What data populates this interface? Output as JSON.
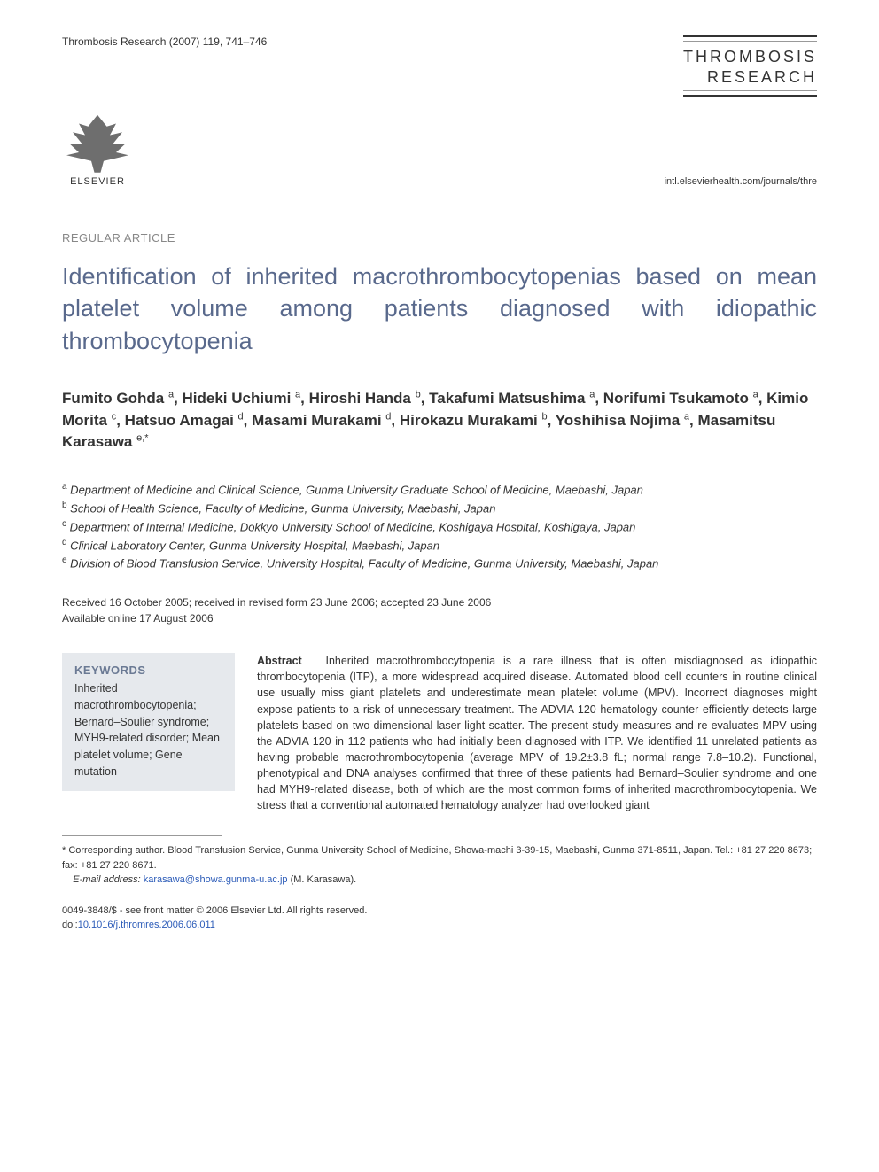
{
  "header": {
    "journal_ref": "Thrombosis Research (2007) 119, 741–746",
    "journal_name_line1": "THROMBOSIS",
    "journal_name_line2": "RESEARCH",
    "publisher_name": "ELSEVIER",
    "journal_url": "intl.elsevierhealth.com/journals/thre"
  },
  "article": {
    "type": "REGULAR ARTICLE",
    "title": "Identification of inherited macrothrombocytopenias based on mean platelet volume among patients diagnosed with idiopathic thrombocytopenia",
    "authors_html": "Fumito Gohda <sup>a</sup>, Hideki Uchiumi <sup>a</sup>, Hiroshi Handa <sup>b</sup>, Takafumi Matsushima <sup>a</sup>, Norifumi Tsukamoto <sup>a</sup>, Kimio Morita <sup>c</sup>, Hatsuo Amagai <sup>d</sup>, Masami Murakami <sup>d</sup>, Hirokazu Murakami <sup>b</sup>, Yoshihisa Nojima <sup>a</sup>, Masamitsu Karasawa <sup>e,*</sup>"
  },
  "affiliations": [
    {
      "sup": "a",
      "text": "Department of Medicine and Clinical Science, Gunma University Graduate School of Medicine, Maebashi, Japan"
    },
    {
      "sup": "b",
      "text": "School of Health Science, Faculty of Medicine, Gunma University, Maebashi, Japan"
    },
    {
      "sup": "c",
      "text": "Department of Internal Medicine, Dokkyo University School of Medicine, Koshigaya Hospital, Koshigaya, Japan"
    },
    {
      "sup": "d",
      "text": "Clinical Laboratory Center, Gunma University Hospital, Maebashi, Japan"
    },
    {
      "sup": "e",
      "text": "Division of Blood Transfusion Service, University Hospital, Faculty of Medicine, Gunma University, Maebashi, Japan"
    }
  ],
  "dates": {
    "received": "Received 16 October 2005; received in revised form 23 June 2006; accepted 23 June 2006",
    "online": "Available online 17 August 2006"
  },
  "keywords": {
    "heading": "KEYWORDS",
    "list": "Inherited macrothrombocytopenia; Bernard–Soulier syndrome; MYH9-related disorder; Mean platelet volume; Gene mutation"
  },
  "abstract": {
    "label": "Abstract",
    "text": "Inherited macrothrombocytopenia is a rare illness that is often misdiagnosed as idiopathic thrombocytopenia (ITP), a more widespread acquired disease. Automated blood cell counters in routine clinical use usually miss giant platelets and underestimate mean platelet volume (MPV). Incorrect diagnoses might expose patients to a risk of unnecessary treatment. The ADVIA 120 hematology counter efficiently detects large platelets based on two-dimensional laser light scatter. The present study measures and re-evaluates MPV using the ADVIA 120 in 112 patients who had initially been diagnosed with ITP. We identified 11 unrelated patients as having probable macrothrombocytopenia (average MPV of 19.2±3.8 fL; normal range 7.8–10.2). Functional, phenotypical and DNA analyses confirmed that three of these patients had Bernard–Soulier syndrome and one had MYH9-related disease, both of which are the most common forms of inherited macrothrombocytopenia. We stress that a conventional automated hematology analyzer had overlooked giant"
  },
  "footer": {
    "corresponding": "* Corresponding author. Blood Transfusion Service, Gunma University School of Medicine, Showa-machi 3-39-15, Maebashi, Gunma 371-8511, Japan. Tel.: +81 27 220 8673; fax: +81 27 220 8671.",
    "email_label": "E-mail address:",
    "email": "karasawa@showa.gunma-u.ac.jp",
    "email_suffix": "(M. Karasawa).",
    "issn": "0049-3848/$ - see front matter © 2006 Elsevier Ltd. All rights reserved.",
    "doi_prefix": "doi:",
    "doi": "10.1016/j.thromres.2006.06.011"
  },
  "colors": {
    "title_color": "#59698c",
    "keywords_bg": "#e6e9ed",
    "keywords_heading": "#6b7a94",
    "link_color": "#2b5bb8",
    "body_text": "#333333",
    "muted_text": "#888888"
  }
}
